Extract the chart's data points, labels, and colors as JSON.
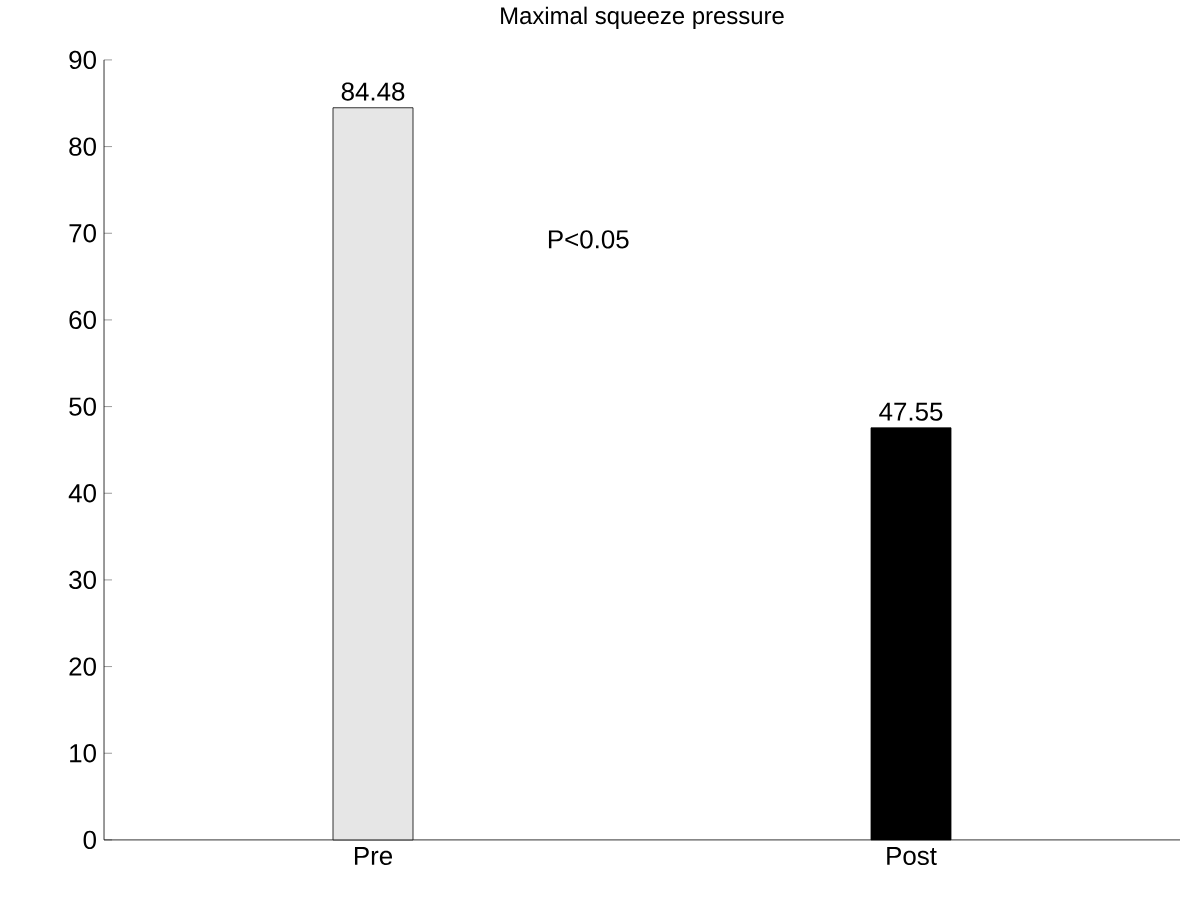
{
  "chart_data": {
    "type": "bar",
    "title": "Maximal squeeze pressure",
    "categories": [
      "Pre",
      "Post"
    ],
    "values": [
      84.48,
      47.55
    ],
    "colors": [
      "#e6e6e6",
      "#000000"
    ],
    "ylim": [
      0,
      90
    ],
    "yticks": [
      0,
      10,
      20,
      30,
      40,
      50,
      60,
      70,
      80,
      90
    ],
    "data_labels": true,
    "annotations": [
      "P<0.05"
    ]
  }
}
